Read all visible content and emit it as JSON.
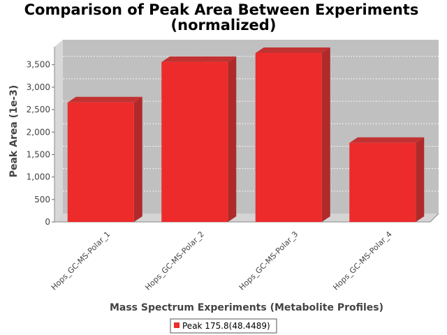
{
  "chart_data": {
    "type": "bar",
    "title_lines": [
      "Comparison of Peak Area Between Experiments",
      "(normalized)"
    ],
    "xlabel": "Mass Spectrum Experiments (Metabolite Profiles)",
    "ylabel": "Peak Area (1e-3)",
    "categories": [
      "Hops_GC-MS-Polar_1",
      "Hops_GC-MS-Polar_2",
      "Hops_GC-MS-Polar_3",
      "Hops_GC-MS-Polar_4"
    ],
    "series": [
      {
        "name": "Peak 175.8(48.4489)",
        "values": [
          2660,
          3560,
          3760,
          1760
        ],
        "color": "#ee2b2b"
      }
    ],
    "ylim": [
      0,
      3900
    ],
    "yticks": [
      0,
      500,
      1000,
      1500,
      2000,
      2500,
      3000,
      3500
    ],
    "ytick_labels": [
      "0",
      "500",
      "1,000",
      "1,500",
      "2,000",
      "2,500",
      "3,000",
      "3,500"
    ],
    "grid": true,
    "legend_position": "bottom-center",
    "plot_background": "#c0c0c0"
  }
}
